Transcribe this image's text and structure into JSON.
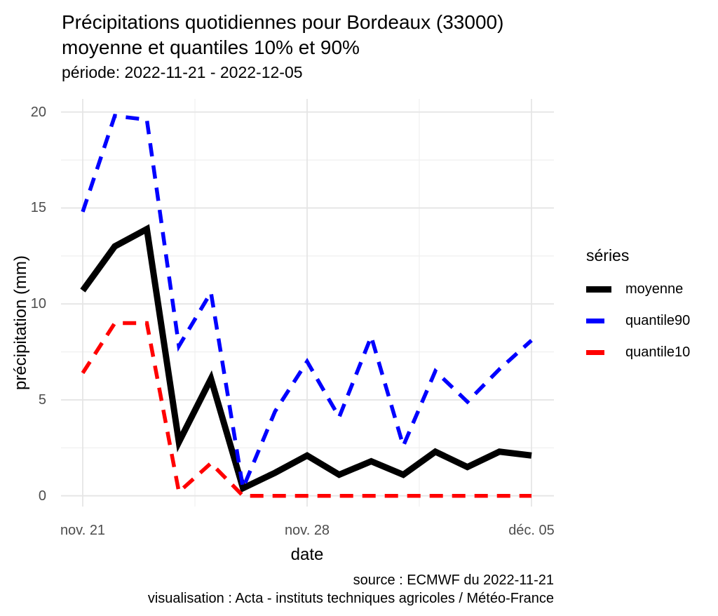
{
  "header": {
    "title_line1": "Précipitations quotidiennes pour Bordeaux (33000)",
    "title_line2": "moyenne et quantiles 10% et 90%",
    "subtitle": "période: 2022-11-21 - 2022-12-05"
  },
  "caption": {
    "line1": "source : ECMWF du 2022-11-21",
    "line2": "visualisation : Acta - instituts techniques agricoles / Météo-France"
  },
  "legend": {
    "title": "séries",
    "entries": [
      {
        "label": "moyenne",
        "color": "#000000",
        "style": "solid"
      },
      {
        "label": "quantile90",
        "color": "#0000FF",
        "style": "dashed"
      },
      {
        "label": "quantile10",
        "color": "#FF0000",
        "style": "dashed"
      }
    ]
  },
  "chart_data": {
    "type": "line",
    "title": "Précipitations quotidiennes pour Bordeaux (33000) moyenne et quantiles 10% et 90%",
    "subtitle": "période: 2022-11-21 - 2022-12-05",
    "xlabel": "date",
    "ylabel": "précipitation (mm)",
    "x": [
      "2022-11-21",
      "2022-11-22",
      "2022-11-23",
      "2022-11-24",
      "2022-11-25",
      "2022-11-26",
      "2022-11-27",
      "2022-11-28",
      "2022-11-29",
      "2022-11-30",
      "2022-12-01",
      "2022-12-02",
      "2022-12-03",
      "2022-12-04",
      "2022-12-05"
    ],
    "x_ticks": [
      {
        "label": "nov. 21",
        "day": 0
      },
      {
        "label": "nov. 28",
        "day": 7
      },
      {
        "label": "déc. 05",
        "day": 14
      }
    ],
    "x_minor_days": [
      3.5,
      10.5
    ],
    "ylim": [
      0,
      20
    ],
    "yticks": [
      0,
      5,
      10,
      15,
      20
    ],
    "y_minor": [
      2.5,
      7.5,
      12.5,
      17.5
    ],
    "grid": {
      "major_color": "#E5E5E5",
      "minor_color": "#F0F0F0",
      "background": "#FFFFFF"
    },
    "legend_position": "right",
    "series": [
      {
        "name": "moyenne",
        "color": "#000000",
        "dashed": false,
        "values": [
          10.7,
          13.0,
          13.9,
          2.8,
          6.1,
          0.4,
          1.2,
          2.1,
          1.1,
          1.8,
          1.1,
          2.3,
          1.5,
          2.3,
          2.1
        ]
      },
      {
        "name": "quantile90",
        "color": "#0000FF",
        "dashed": true,
        "values": [
          14.8,
          19.8,
          19.6,
          7.8,
          10.6,
          0.4,
          4.4,
          7.0,
          4.1,
          8.3,
          2.6,
          6.5,
          4.9,
          6.6,
          8.1
        ]
      },
      {
        "name": "quantile10",
        "color": "#FF0000",
        "dashed": true,
        "values": [
          6.4,
          9.0,
          9.0,
          0.2,
          1.7,
          0.0,
          0.0,
          0.0,
          0.0,
          0.0,
          0.0,
          0.0,
          0.0,
          0.0,
          0.0
        ]
      }
    ]
  }
}
